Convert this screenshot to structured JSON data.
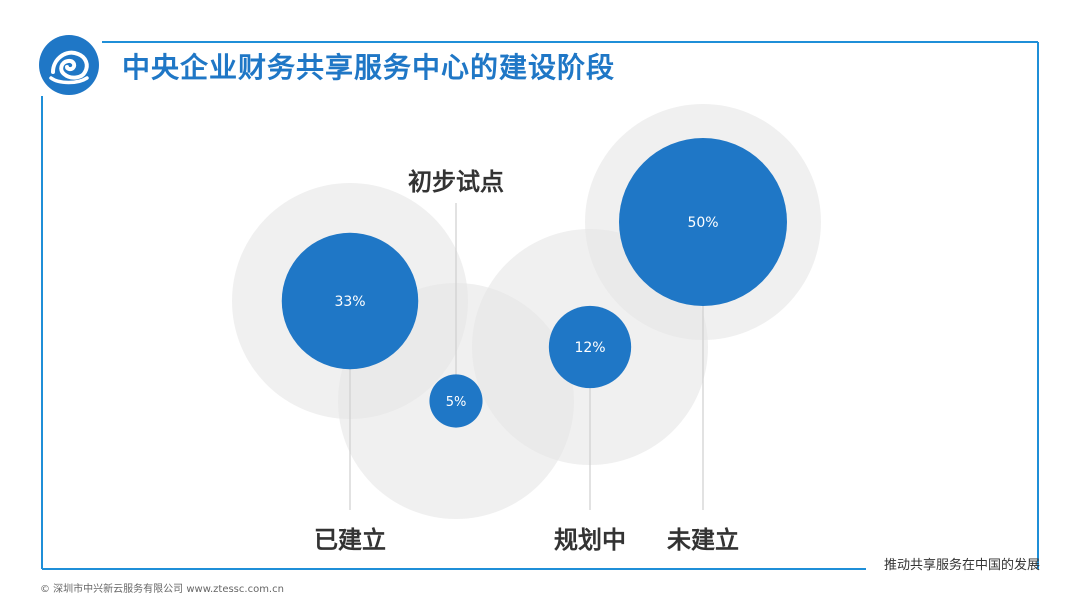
{
  "header": {
    "title": "中央企业财务共享服务中心的建设阶段"
  },
  "footer": {
    "copyright": "© 深圳市中兴新云服务有限公司 www.ztessc.com.cn",
    "caption": "推动共享服务在中国的发展"
  },
  "theme": {
    "accent": "#1f77c6",
    "halo": "#e6e6e6",
    "frame": "#1f8fd8",
    "label": "#333333"
  },
  "chart_data": {
    "type": "bubble",
    "series": [
      {
        "category": "已建立",
        "value": 33,
        "value_label": "33%"
      },
      {
        "category": "初步试点",
        "value": 5,
        "value_label": "5%"
      },
      {
        "category": "规划中",
        "value": 12,
        "value_label": "12%"
      },
      {
        "category": "未建立",
        "value": 50,
        "value_label": "50%"
      }
    ]
  }
}
